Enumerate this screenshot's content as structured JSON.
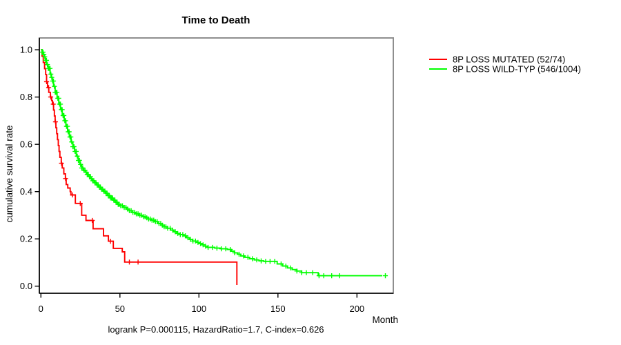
{
  "window": {
    "background": "#ffffff"
  },
  "chart_data": {
    "type": "line",
    "variant": "kaplan-meier-step",
    "title": "Time to Death",
    "xlabel": "Month",
    "ylabel": "cumulative survival rate",
    "caption": "logrank P=0.000115, HazardRatio=1.7, C-index=0.626",
    "xlim": [
      -1,
      223
    ],
    "ylim": [
      -0.03,
      1.05
    ],
    "x_ticks": [
      0,
      50,
      100,
      150,
      200
    ],
    "x_tick_labels": [
      "0",
      "50",
      "100",
      "150",
      "200"
    ],
    "y_ticks": [
      0,
      0.2,
      0.4,
      0.6,
      0.8,
      1
    ],
    "y_tick_labels": [
      "0.0",
      "0.2",
      "0.4",
      "0.6",
      "0.8",
      "1.0"
    ],
    "grid": false,
    "legend_position": "top-right-outside",
    "series": [
      {
        "name": "8P LOSS MUTATED (52/74)",
        "color": "#ff0000",
        "points": [
          [
            0,
            1.0
          ],
          [
            0.7,
            0.973
          ],
          [
            1.5,
            0.946
          ],
          [
            2.3,
            0.92
          ],
          [
            3,
            0.895
          ],
          [
            3.6,
            0.865
          ],
          [
            4.2,
            0.84
          ],
          [
            5,
            0.82
          ],
          [
            6,
            0.8
          ],
          [
            6.8,
            0.785
          ],
          [
            7.3,
            0.77
          ],
          [
            8,
            0.745
          ],
          [
            8.5,
            0.72
          ],
          [
            9,
            0.695
          ],
          [
            9.5,
            0.67
          ],
          [
            10,
            0.645
          ],
          [
            10.5,
            0.62
          ],
          [
            11,
            0.595
          ],
          [
            11.5,
            0.57
          ],
          [
            12,
            0.545
          ],
          [
            12.9,
            0.52
          ],
          [
            13.5,
            0.5
          ],
          [
            14.5,
            0.475
          ],
          [
            15.5,
            0.455
          ],
          [
            16,
            0.43
          ],
          [
            17,
            0.415
          ],
          [
            18.5,
            0.4
          ],
          [
            19,
            0.386
          ],
          [
            21.8,
            0.35
          ],
          [
            25.8,
            0.3
          ],
          [
            28.5,
            0.278
          ],
          [
            33,
            0.243
          ],
          [
            39.6,
            0.213
          ],
          [
            42.7,
            0.19
          ],
          [
            45.8,
            0.16
          ],
          [
            51.5,
            0.145
          ],
          [
            53,
            0.102
          ],
          [
            124,
            0.005
          ]
        ],
        "censor_months": [
          3.6,
          4.9,
          6.2,
          7.8,
          9.2,
          13,
          15.6,
          20,
          24.9,
          32.5,
          44,
          56,
          61.5
        ]
      },
      {
        "name": "8P LOSS WILD-TYP (546/1004)",
        "color": "#00ff00",
        "points": [
          [
            0,
            1.0
          ],
          [
            0.8,
            0.99
          ],
          [
            1.5,
            0.98
          ],
          [
            2.1,
            0.97
          ],
          [
            2.8,
            0.955
          ],
          [
            3.6,
            0.937
          ],
          [
            4.5,
            0.921
          ],
          [
            5.8,
            0.897
          ],
          [
            6.6,
            0.883
          ],
          [
            7.2,
            0.868
          ],
          [
            8,
            0.845
          ],
          [
            9,
            0.82
          ],
          [
            10.2,
            0.795
          ],
          [
            11.3,
            0.77
          ],
          [
            12.4,
            0.747
          ],
          [
            13.5,
            0.722
          ],
          [
            14.7,
            0.7
          ],
          [
            15.8,
            0.676
          ],
          [
            16.9,
            0.653
          ],
          [
            18,
            0.631
          ],
          [
            19.1,
            0.61
          ],
          [
            20.2,
            0.59
          ],
          [
            21.3,
            0.57
          ],
          [
            22.4,
            0.55
          ],
          [
            23.6,
            0.532
          ],
          [
            24.7,
            0.515
          ],
          [
            25.8,
            0.5
          ],
          [
            27,
            0.49
          ],
          [
            28.2,
            0.482
          ],
          [
            29.3,
            0.472
          ],
          [
            30.4,
            0.463
          ],
          [
            31.5,
            0.454
          ],
          [
            32.7,
            0.446
          ],
          [
            34,
            0.437
          ],
          [
            35.2,
            0.428
          ],
          [
            36.5,
            0.419
          ],
          [
            38,
            0.41
          ],
          [
            39.5,
            0.402
          ],
          [
            41,
            0.393
          ],
          [
            42.5,
            0.383
          ],
          [
            44,
            0.373
          ],
          [
            45.5,
            0.364
          ],
          [
            47,
            0.355
          ],
          [
            48.5,
            0.346
          ],
          [
            50,
            0.34
          ],
          [
            52,
            0.333
          ],
          [
            54,
            0.326
          ],
          [
            56,
            0.319
          ],
          [
            58,
            0.312
          ],
          [
            60,
            0.306
          ],
          [
            62,
            0.3
          ],
          [
            64,
            0.294
          ],
          [
            66,
            0.289
          ],
          [
            68,
            0.284
          ],
          [
            70,
            0.279
          ],
          [
            72,
            0.273
          ],
          [
            74,
            0.265
          ],
          [
            76,
            0.258
          ],
          [
            78,
            0.251
          ],
          [
            80,
            0.245
          ],
          [
            82,
            0.237
          ],
          [
            84,
            0.23
          ],
          [
            86,
            0.223
          ],
          [
            88,
            0.218
          ],
          [
            90,
            0.213
          ],
          [
            92,
            0.205
          ],
          [
            94,
            0.198
          ],
          [
            96,
            0.191
          ],
          [
            98,
            0.185
          ],
          [
            100,
            0.18
          ],
          [
            102,
            0.175
          ],
          [
            104,
            0.169
          ],
          [
            105.5,
            0.164
          ],
          [
            110,
            0.161
          ],
          [
            114,
            0.158
          ],
          [
            118,
            0.155
          ],
          [
            120.5,
            0.148
          ],
          [
            122.5,
            0.141
          ],
          [
            124.5,
            0.135
          ],
          [
            126.5,
            0.128
          ],
          [
            129,
            0.122
          ],
          [
            132,
            0.116
          ],
          [
            135,
            0.111
          ],
          [
            138,
            0.107
          ],
          [
            141,
            0.105
          ],
          [
            149.5,
            0.094
          ],
          [
            153,
            0.085
          ],
          [
            156,
            0.077
          ],
          [
            159,
            0.07
          ],
          [
            162,
            0.064
          ],
          [
            165,
            0.057
          ],
          [
            175.5,
            0.044
          ],
          [
            216,
            0.044
          ]
        ],
        "censor_months": [
          0.8,
          1.35,
          1.9,
          2.45,
          3.0,
          3.55,
          4.1,
          4.65,
          5.2,
          5.75,
          6.3,
          6.85,
          7.4,
          7.95,
          8.5,
          9.05,
          9.6,
          10.15,
          10.7,
          11.25,
          11.8,
          12.35,
          12.9,
          13.45,
          14.0,
          14.55,
          15.1,
          15.65,
          16.2,
          16.75,
          17.3,
          17.85,
          18.4,
          18.95,
          19.5,
          20.2,
          20.9,
          21.6,
          22.3,
          23.0,
          23.7,
          24.4,
          25.1,
          25.8,
          26.5,
          27.2,
          27.9,
          28.6,
          29.3,
          30.0,
          30.7,
          31.4,
          32.1,
          32.8,
          33.5,
          34.2,
          34.9,
          35.6,
          36.3,
          37.0,
          37.7,
          38.4,
          39.1,
          39.8,
          40.5,
          41.2,
          41.9,
          42.6,
          43.3,
          44.0,
          44.7,
          45.4,
          46.1,
          46.8,
          47.5,
          48.2,
          48.9,
          49.6,
          50.5,
          51.6,
          52.7,
          53.8,
          54.9,
          56.0,
          57.1,
          58.2,
          59.3,
          60.4,
          61.5,
          62.6,
          63.7,
          64.8,
          65.9,
          67.0,
          68.1,
          69.2,
          70.3,
          71.4,
          72.5,
          73.6,
          74.7,
          75.8,
          76.9,
          78.0,
          79.1,
          80.2,
          81.8,
          83.4,
          85.0,
          86.6,
          88.2,
          89.8,
          91.4,
          93.0,
          94.6,
          96.2,
          97.8,
          99.4,
          101.0,
          102.6,
          104.2,
          105.8,
          108.6,
          111.4,
          114.2,
          117.0,
          119.8,
          122.6,
          125.4,
          128.2,
          131.0,
          133.8,
          136.6,
          139.4,
          142.2,
          145.0,
          148,
          152,
          155,
          158,
          162,
          165,
          168,
          172,
          176,
          179,
          184,
          189,
          218
        ]
      }
    ]
  }
}
